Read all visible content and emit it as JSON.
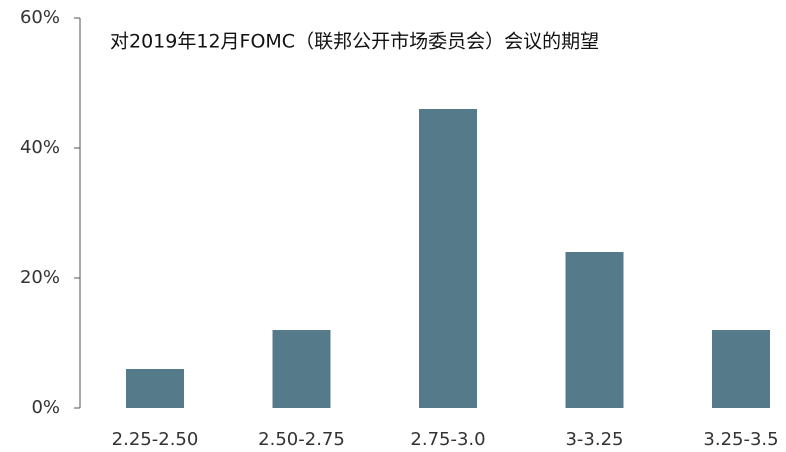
{
  "chart_data": {
    "type": "bar",
    "title": "对2019年12月FOMC（联邦公开市场委员会）会议的期望",
    "categories": [
      "2.25-2.50",
      "2.50-2.75",
      "2.75-3.0",
      "3-3.25",
      "3.25-3.5"
    ],
    "values": [
      6,
      12,
      46,
      24,
      12
    ],
    "color": "#557a8a",
    "ylim": [
      0,
      60
    ],
    "yticks": [
      {
        "value": 0,
        "label": "0%"
      },
      {
        "value": 20,
        "label": "20%"
      },
      {
        "value": 40,
        "label": "40%"
      },
      {
        "value": 60,
        "label": "60%"
      }
    ],
    "grid": false
  }
}
